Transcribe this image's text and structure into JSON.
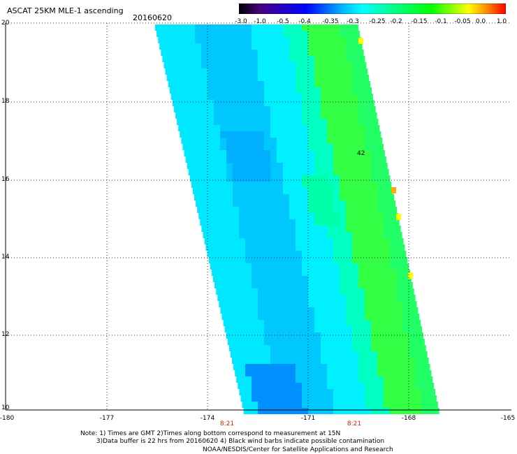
{
  "header": {
    "title": "ASCAT 25KM MLE-1 ascending",
    "date": "20160620"
  },
  "colorbar": {
    "labels": [
      "-3.0",
      "-1.0",
      "-0.5",
      "-0.4",
      "-0.35",
      "-0.3",
      "-0.25",
      "-0.2",
      "-0.15",
      "-0.1",
      "-0.05",
      "0.0",
      "1.0"
    ],
    "colors": [
      "#000000",
      "#7a00a8",
      "#0000ff",
      "#00b4ff",
      "#00ffff",
      "#00ff66",
      "#00ff00",
      "#ffff00",
      "#ff8800",
      "#ff0000"
    ]
  },
  "map": {
    "y_labels": [
      "20",
      "18",
      "16",
      "14",
      "12",
      "10"
    ],
    "x_labels": [
      "-180",
      "-177",
      "-174",
      "-171",
      "-168",
      "-165"
    ],
    "time_labels": [
      "8:21",
      "8:21"
    ],
    "annotation": "42",
    "lon_range": [
      -180,
      -165
    ],
    "lat_range": [
      10,
      20
    ],
    "grid": true
  },
  "footer": {
    "note": "Note: 1) Times are GMT 2)Times along bottom correspond to measurement at 15N\n        3)Data buffer is 22 hrs from 20160620 4) Black wind barbs indicate possible contamination",
    "credit": "NOAA/NESDIS/Center for Satellite Applications and Research"
  }
}
